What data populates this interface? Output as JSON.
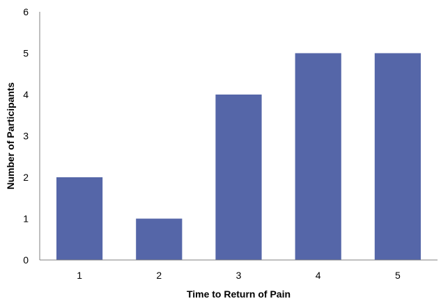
{
  "chart_data": {
    "type": "bar",
    "title": "",
    "xlabel": "Time to Return of Pain",
    "ylabel": "Number of Participants",
    "categories": [
      "1",
      "2",
      "3",
      "4",
      "5"
    ],
    "values": [
      2,
      1,
      4,
      5,
      5
    ],
    "ylim": [
      0,
      6
    ],
    "yticks": [
      "0",
      "1",
      "2",
      "3",
      "4",
      "5",
      "6"
    ],
    "grid": false,
    "legend": "none",
    "bar_color": "#5566a8"
  }
}
